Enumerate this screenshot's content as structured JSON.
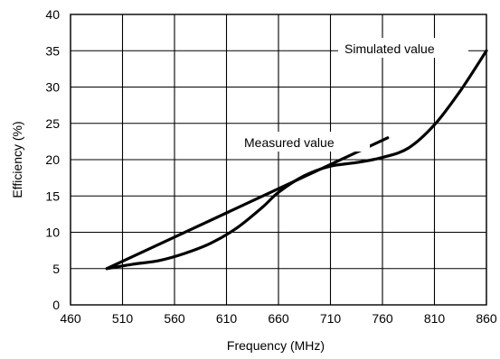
{
  "chart_data": {
    "type": "line",
    "title": "",
    "xlabel": "Frequency (MHz)",
    "ylabel": "Efficiency (%)",
    "xlim": [
      460,
      860
    ],
    "ylim": [
      0,
      40
    ],
    "x_ticks": [
      "460",
      "510",
      "560",
      "610",
      "660",
      "710",
      "760",
      "810",
      "860"
    ],
    "y_ticks": [
      "0",
      "5",
      "10",
      "15",
      "20",
      "25",
      "30",
      "35",
      "40"
    ],
    "grid": true,
    "series": [
      {
        "name": "Simulated value",
        "x": [
          495,
          520,
          545,
          570,
          595,
          620,
          645,
          660,
          685,
          710,
          735,
          760,
          785,
          810,
          835,
          860
        ],
        "y": [
          5,
          5.6,
          6.1,
          7.1,
          8.5,
          10.6,
          13.5,
          15.5,
          17.8,
          19.1,
          19.6,
          20.3,
          21.6,
          24.8,
          29.5,
          35
        ]
      },
      {
        "name": "Measured value",
        "x": [
          495,
          765
        ],
        "y": [
          5,
          23
        ]
      }
    ]
  }
}
